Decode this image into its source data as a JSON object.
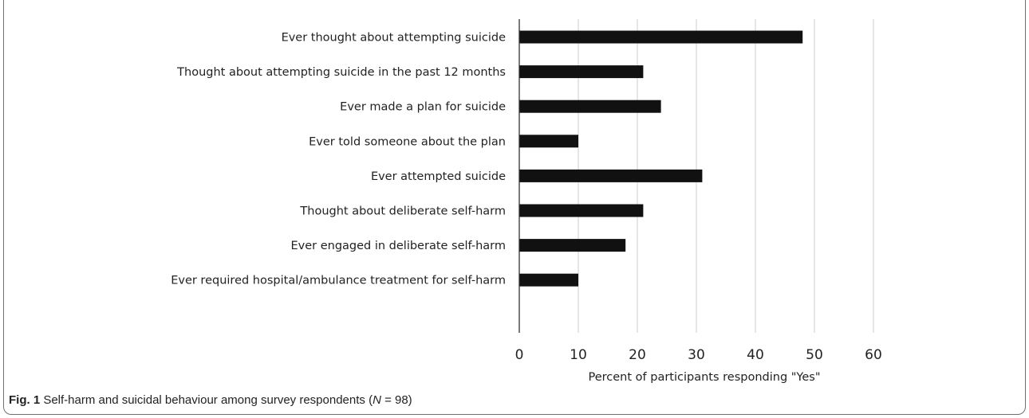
{
  "chart_data": {
    "type": "bar",
    "orientation": "horizontal",
    "categories": [
      "Ever thought about attempting suicide",
      "Thought about attempting suicide in the past 12 months",
      "Ever made a plan for suicide",
      "Ever told someone about the plan",
      "Ever attempted suicide",
      "Thought about deliberate self-harm",
      "Ever engaged in deliberate self-harm",
      "Ever required hospital/ambulance treatment for self-harm"
    ],
    "values": [
      48,
      21,
      24,
      10,
      31,
      21,
      18,
      10
    ],
    "xlabel": "Percent of participants responding \"Yes\"",
    "xlim": [
      0,
      60
    ],
    "xticks": [
      "0",
      "10",
      "20",
      "30",
      "40",
      "50",
      "60"
    ],
    "grid": true,
    "bar_color": "#111111",
    "grid_color": "#d9d9d9"
  },
  "caption": {
    "label": "Fig. 1",
    "text_before": " Self-harm and suicidal behaviour among survey respondents (",
    "n_symbol": "N",
    "text_after": " = 98)"
  }
}
